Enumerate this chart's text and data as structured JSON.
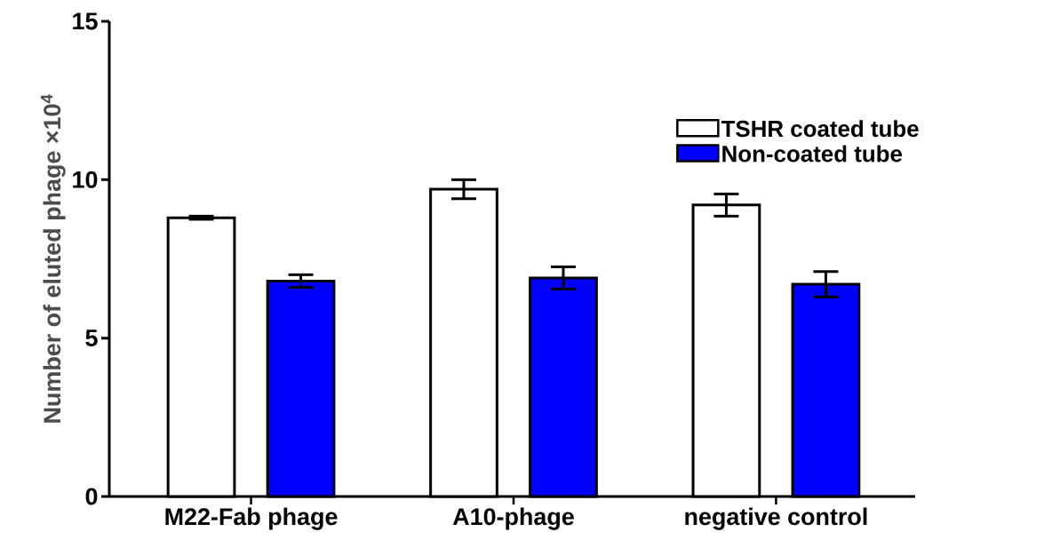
{
  "chart_data": {
    "type": "bar",
    "ylabel": "Number of eluted phage ×10$^{4}$",
    "categories": [
      "M22-Fab phage",
      "A10-phage",
      "negative control"
    ],
    "series": [
      {
        "name": "TSHR coated tube",
        "color": "#ffffff",
        "values": [
          8.8,
          9.7,
          9.2
        ],
        "errors": [
          0.05,
          0.3,
          0.35
        ]
      },
      {
        "name": "Non-coated tube",
        "color": "#0000ff",
        "values": [
          6.8,
          6.9,
          6.7
        ],
        "errors": [
          0.2,
          0.35,
          0.4
        ]
      }
    ],
    "ylim": [
      0,
      15
    ],
    "yticks": [
      0,
      5,
      10,
      15
    ],
    "legend": "top right"
  }
}
